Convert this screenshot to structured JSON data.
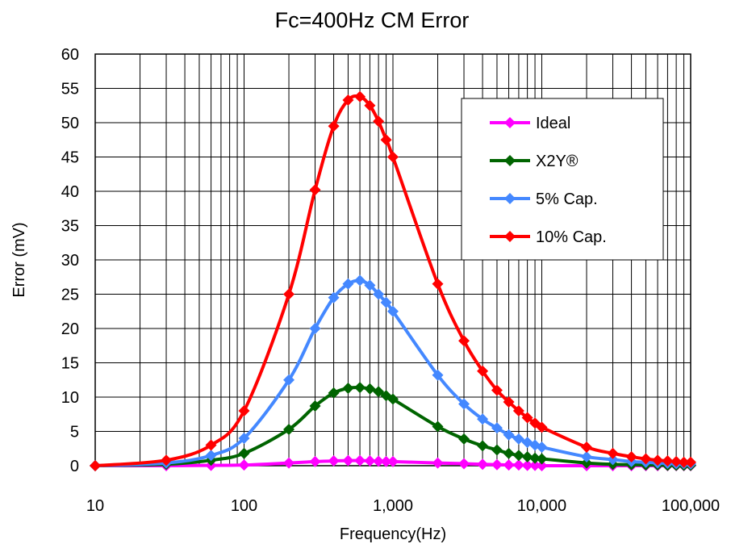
{
  "chart_data": {
    "type": "line",
    "title": "Fc=400Hz CM Error",
    "xlabel": "Frequency(Hz)",
    "ylabel": "Error (mV)",
    "x_scale": "log",
    "xlim": [
      10,
      100000
    ],
    "ylim": [
      0,
      60
    ],
    "grid": true,
    "legend_position": "top-right",
    "x_tick_labels": [
      "10",
      "100",
      "1,000",
      "10,000",
      "100,000"
    ],
    "x_tick_values": [
      10,
      100,
      1000,
      10000,
      100000
    ],
    "y_ticks": [
      0,
      5,
      10,
      15,
      20,
      25,
      30,
      35,
      40,
      45,
      50,
      55,
      60
    ],
    "series": [
      {
        "name": "Ideal",
        "color": "#ff00ff",
        "x": [
          10,
          30,
          60,
          100,
          200,
          300,
          400,
          500,
          600,
          700,
          800,
          900,
          1000,
          2000,
          3000,
          4000,
          5000,
          6000,
          7000,
          8000,
          9000,
          10000,
          20000,
          30000,
          40000,
          50000,
          60000,
          70000,
          80000,
          90000,
          100000
        ],
        "values": [
          0,
          0,
          0.05,
          0.1,
          0.4,
          0.6,
          0.7,
          0.75,
          0.75,
          0.7,
          0.65,
          0.6,
          0.6,
          0.4,
          0.3,
          0.2,
          0.15,
          0.1,
          0.1,
          0.05,
          0.05,
          0,
          0,
          0,
          0,
          0,
          0,
          0,
          0,
          0,
          0
        ]
      },
      {
        "name": "X2Y®",
        "color": "#006400",
        "x": [
          10,
          30,
          60,
          100,
          200,
          300,
          400,
          500,
          600,
          700,
          800,
          900,
          1000,
          2000,
          3000,
          4000,
          5000,
          6000,
          7000,
          8000,
          9000,
          10000,
          20000,
          30000,
          40000,
          50000,
          60000,
          70000,
          80000,
          90000,
          100000
        ],
        "values": [
          0,
          0.2,
          0.8,
          1.8,
          5.3,
          8.7,
          10.6,
          11.3,
          11.4,
          11.2,
          10.8,
          10.2,
          9.7,
          5.7,
          3.9,
          2.9,
          2.3,
          1.8,
          1.5,
          1.3,
          1.1,
          1.0,
          0.4,
          0.2,
          0.15,
          0.1,
          0.1,
          0.05,
          0.05,
          0.05,
          0.05
        ]
      },
      {
        "name": "5% Cap.",
        "color": "#4488ff",
        "x": [
          10,
          30,
          60,
          100,
          200,
          300,
          400,
          500,
          600,
          700,
          800,
          900,
          1000,
          2000,
          3000,
          4000,
          5000,
          6000,
          7000,
          8000,
          9000,
          10000,
          20000,
          30000,
          40000,
          50000,
          60000,
          70000,
          80000,
          90000,
          100000
        ],
        "values": [
          0,
          0.4,
          1.5,
          4.0,
          12.5,
          20.0,
          24.5,
          26.5,
          27.0,
          26.3,
          25.0,
          23.8,
          22.5,
          13.2,
          9.0,
          6.8,
          5.5,
          4.5,
          3.9,
          3.4,
          3.0,
          2.7,
          1.3,
          0.9,
          0.6,
          0.5,
          0.4,
          0.35,
          0.3,
          0.3,
          0.25
        ]
      },
      {
        "name": "10% Cap.",
        "color": "#ff0000",
        "x": [
          10,
          30,
          60,
          100,
          200,
          300,
          400,
          500,
          600,
          700,
          800,
          900,
          1000,
          2000,
          3000,
          4000,
          5000,
          6000,
          7000,
          8000,
          9000,
          10000,
          20000,
          30000,
          40000,
          50000,
          60000,
          70000,
          80000,
          90000,
          100000
        ],
        "values": [
          0,
          0.8,
          3.0,
          8.0,
          25.0,
          40.2,
          49.5,
          53.3,
          53.8,
          52.5,
          50.2,
          47.5,
          45.0,
          26.5,
          18.2,
          13.8,
          11.0,
          9.3,
          8.0,
          7.0,
          6.2,
          5.6,
          2.7,
          1.8,
          1.3,
          1.0,
          0.8,
          0.7,
          0.6,
          0.5,
          0.5
        ]
      }
    ]
  }
}
